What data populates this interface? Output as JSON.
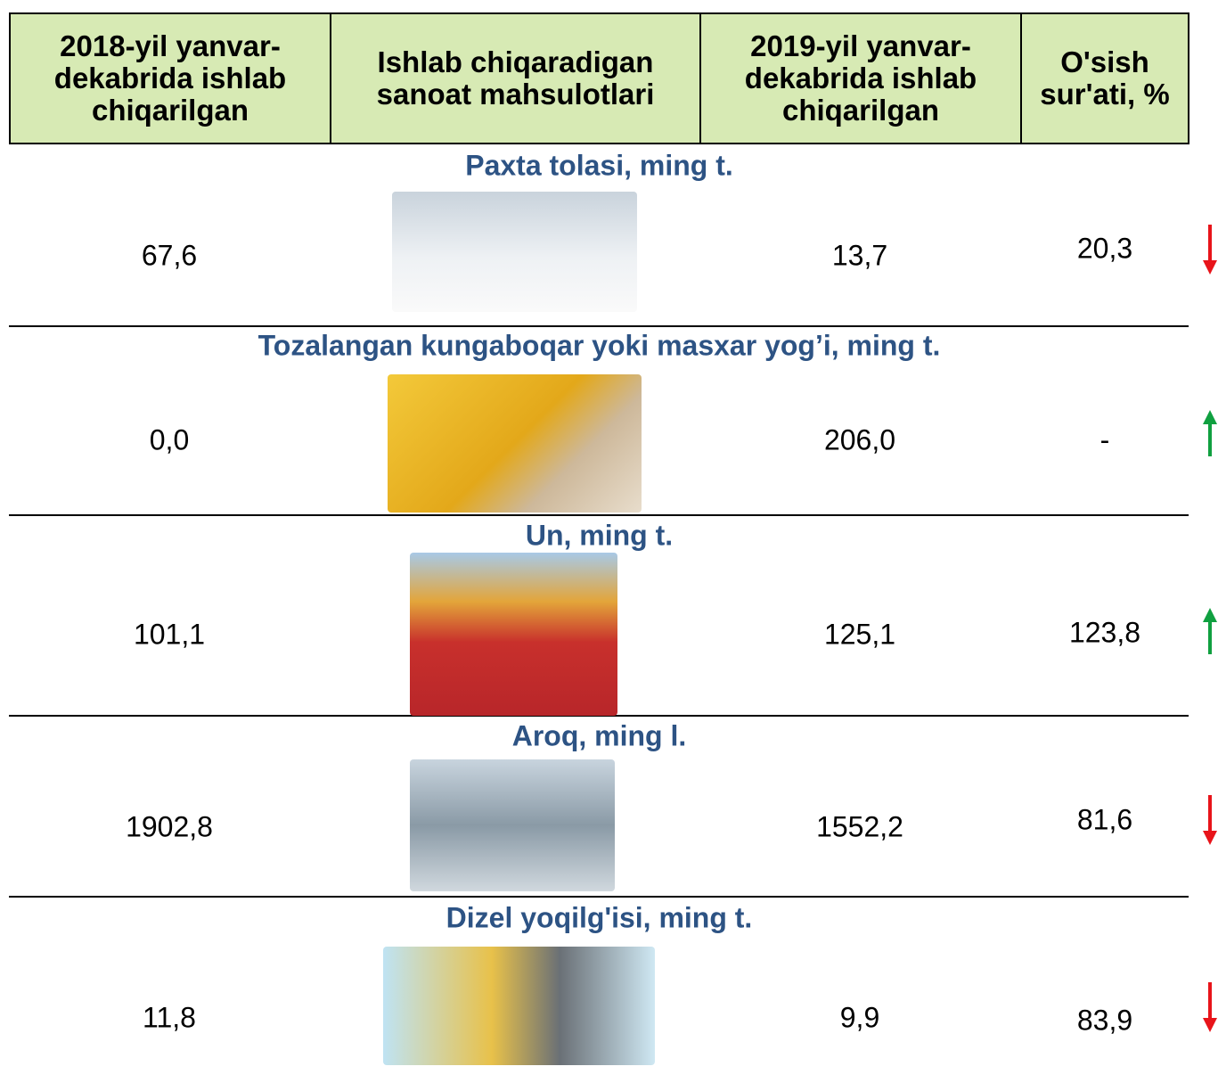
{
  "header": {
    "columns": [
      "2018-yil yanvar-dekabrida ishlab chiqarilgan",
      "Ishlab chiqaradigan sanoat mahsulotlari",
      "2019-yil yanvar-dekabrida ishlab chiqarilgan",
      "O'sish sur'ati, %"
    ]
  },
  "sections": [
    {
      "title": "Paxta tolasi, ming t.",
      "value_2018": "67,6",
      "value_2019": "13,7",
      "growth": "20,3"
    },
    {
      "title": "Tozalangan kungaboqar yoki masxar yog’i, ming t.",
      "value_2018": "0,0",
      "value_2019": "206,0",
      "growth": "-"
    },
    {
      "title": "Un, ming t.",
      "value_2018": "101,1",
      "value_2019": "125,1",
      "growth": "123,8"
    },
    {
      "title": "Aroq, ming l.",
      "value_2018": "1902,8",
      "value_2019": "1552,2",
      "growth": "81,6"
    },
    {
      "title": "Dizel yoqilg'isi, ming t.",
      "value_2018": "11,8",
      "value_2019": "9,9",
      "growth": "83,9"
    }
  ]
}
